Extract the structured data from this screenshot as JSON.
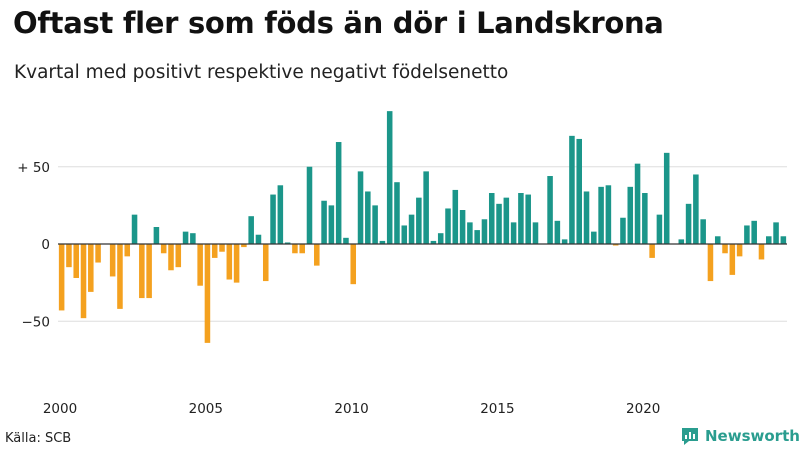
{
  "title": "Oftast fler som föds än dör i Landskrona",
  "subtitle": "Kvartal med positivt respektive negativt födelsenetto",
  "source": "Källa: SCB",
  "brand": "Newsworthy",
  "colors": {
    "positive": "#1b968a",
    "negative": "#f4a11f",
    "grid": "#dddddd",
    "zero": "#333333",
    "brand": "#2a9d8f"
  },
  "chart_data": {
    "type": "bar",
    "title": "Oftast fler som föds än dör i Landskrona",
    "subtitle": "Kvartal med positivt respektive negativt födelsenetto",
    "xlabel": "",
    "ylabel": "",
    "ylim": [
      -85,
      90
    ],
    "y_ticks": [
      {
        "value": 50,
        "label": "+ 50"
      },
      {
        "value": 0,
        "label": "0"
      },
      {
        "value": -50,
        "label": "−50"
      }
    ],
    "x_ticks": [
      {
        "value": 2000,
        "label": "2000"
      },
      {
        "value": 2005,
        "label": "2005"
      },
      {
        "value": 2010,
        "label": "2010"
      },
      {
        "value": 2015,
        "label": "2015"
      },
      {
        "value": 2020,
        "label": "2020"
      }
    ],
    "start_year": 2000,
    "start_quarter": 1,
    "positive_color": "#1b968a",
    "negative_color": "#f4a11f",
    "values": [
      -43,
      -15,
      -22,
      -48,
      -31,
      -12,
      0,
      -21,
      -42,
      -8,
      19,
      -35,
      -35,
      11,
      -6,
      -17,
      -15,
      8,
      7,
      -27,
      -64,
      -9,
      -5,
      -23,
      -25,
      -2,
      18,
      6,
      -24,
      32,
      38,
      1,
      -6,
      -6,
      50,
      -14,
      28,
      25,
      66,
      4,
      -26,
      47,
      34,
      25,
      2,
      86,
      40,
      12,
      19,
      30,
      47,
      2,
      7,
      23,
      35,
      22,
      14,
      9,
      16,
      33,
      26,
      30,
      14,
      33,
      32,
      14,
      0,
      44,
      15,
      3,
      70,
      68,
      34,
      8,
      37,
      38,
      -1,
      17,
      37,
      52,
      33,
      -9,
      19,
      59,
      0,
      3,
      26,
      45,
      16,
      -24,
      5,
      -6,
      -20,
      -8,
      12,
      15,
      -10,
      5,
      14,
      5
    ]
  }
}
